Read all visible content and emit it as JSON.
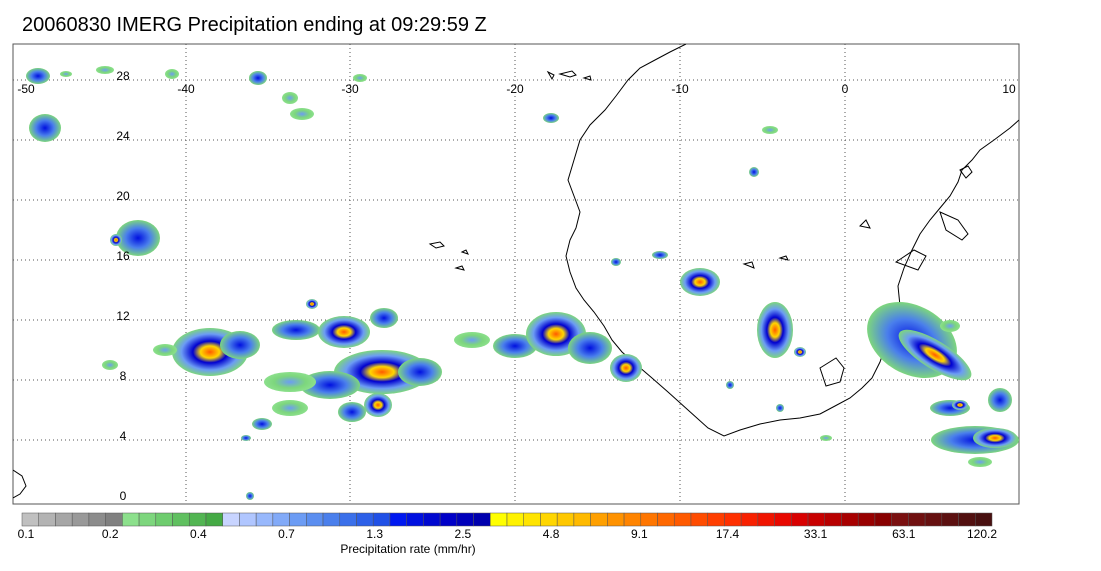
{
  "title": "20060830 IMERG Precipitation ending at 09:29:59 Z",
  "map": {
    "lon_labels": [
      "-50",
      "-40",
      "-30",
      "-20",
      "-10",
      "0",
      "10"
    ],
    "lat_labels": [
      "0",
      "4",
      "8",
      "12",
      "16",
      "20",
      "24",
      "28"
    ],
    "lon_range": [
      -50,
      10
    ],
    "lat_range": [
      -0.5,
      29
    ],
    "grid": "dotted"
  },
  "colorbar": {
    "title": "Precipitation rate (mm/hr)",
    "tick_labels": [
      "0.1",
      "0.2",
      "0.4",
      "0.7",
      "1.3",
      "2.5",
      "4.8",
      "9.1",
      "17.4",
      "33.1",
      "63.1",
      "120.2"
    ],
    "colors": [
      "#c0c0c0",
      "#b3b3b3",
      "#a6a6a6",
      "#999999",
      "#8c8c8c",
      "#808080",
      "#8ce08c",
      "#7dd67d",
      "#6ecc6e",
      "#60c060",
      "#52b552",
      "#45aa45",
      "#c8d4ff",
      "#b0c6ff",
      "#98b8fc",
      "#82aaf8",
      "#6c9cf4",
      "#5b8ef0",
      "#4a7fec",
      "#3b70ea",
      "#2d60e8",
      "#2050e6",
      "#0018f0",
      "#0010e0",
      "#0008d0",
      "#0000c8",
      "#0000bb",
      "#0000ae",
      "#ffff00",
      "#fff200",
      "#ffe400",
      "#ffd600",
      "#ffc800",
      "#ffba00",
      "#ffa000",
      "#ff9200",
      "#ff8400",
      "#ff7600",
      "#ff6800",
      "#ff5a00",
      "#ff4c00",
      "#ff3e00",
      "#ff3000",
      "#f82000",
      "#f01400",
      "#e80800",
      "#d80000",
      "#c80000",
      "#b80000",
      "#a80000",
      "#980000",
      "#880000",
      "#7a1010",
      "#701010",
      "#661010",
      "#5c1010",
      "#521010",
      "#481010"
    ]
  }
}
